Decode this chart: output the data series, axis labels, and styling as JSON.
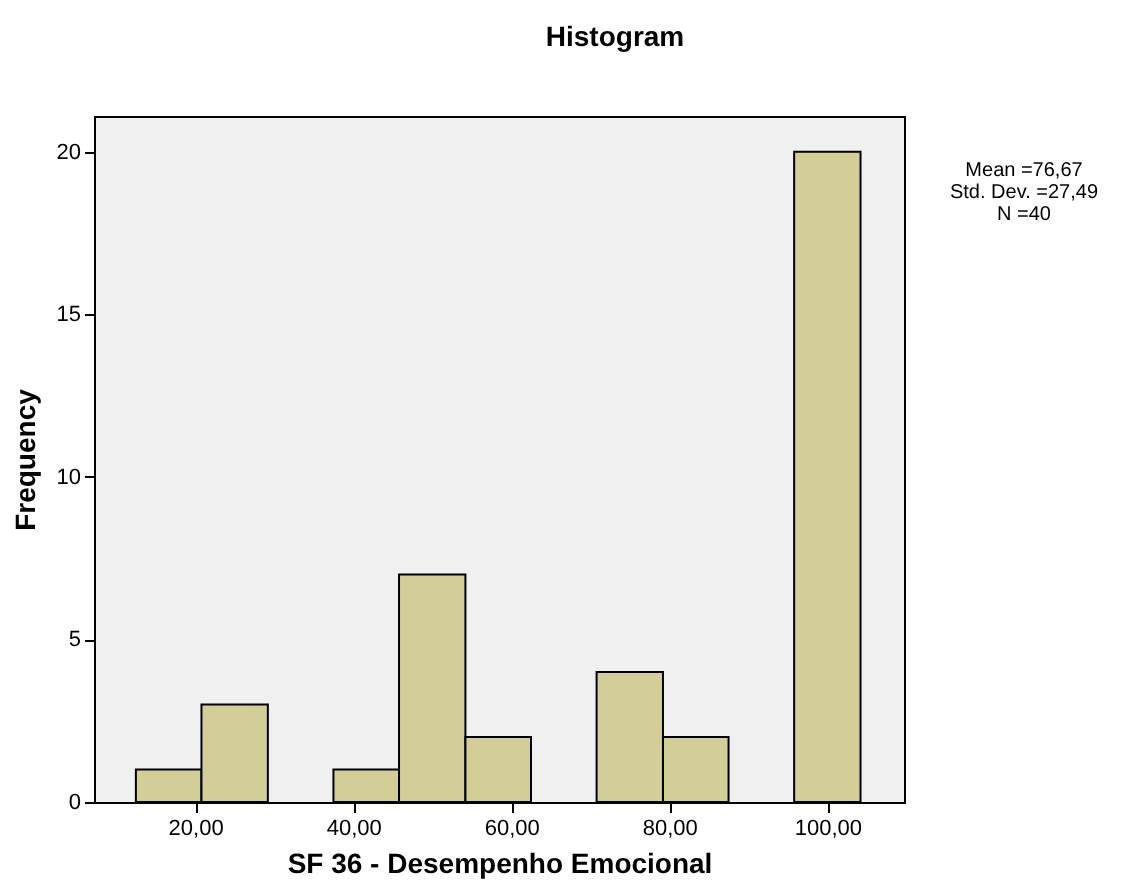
{
  "chart_data": {
    "type": "histogram",
    "title": "Histogram",
    "xlabel": "SF 36 - Desempenho Emocional",
    "ylabel": "Frequency",
    "bins": [
      12.5,
      20.8,
      29.2,
      37.5,
      45.8,
      54.2,
      62.5,
      70.8,
      79.2,
      87.5,
      95.8,
      104.2
    ],
    "values": [
      1,
      3,
      0,
      1,
      7,
      2,
      0,
      4,
      2,
      0,
      20
    ],
    "color": "#d3ce97",
    "xlim": [
      7.2,
      109.7
    ],
    "xticks": [
      {
        "value": 20,
        "label": "20,00"
      },
      {
        "value": 40,
        "label": "40,00"
      },
      {
        "value": 60,
        "label": "60,00"
      },
      {
        "value": 80,
        "label": "80,00"
      },
      {
        "value": 100,
        "label": "100,00"
      }
    ],
    "ylim": [
      0,
      21.1
    ],
    "yticks": [
      0,
      5,
      10,
      15,
      20
    ],
    "grid": false,
    "annotations": [
      "Mean =76,67",
      "Std. Dev. =27,49",
      "N =40"
    ]
  }
}
